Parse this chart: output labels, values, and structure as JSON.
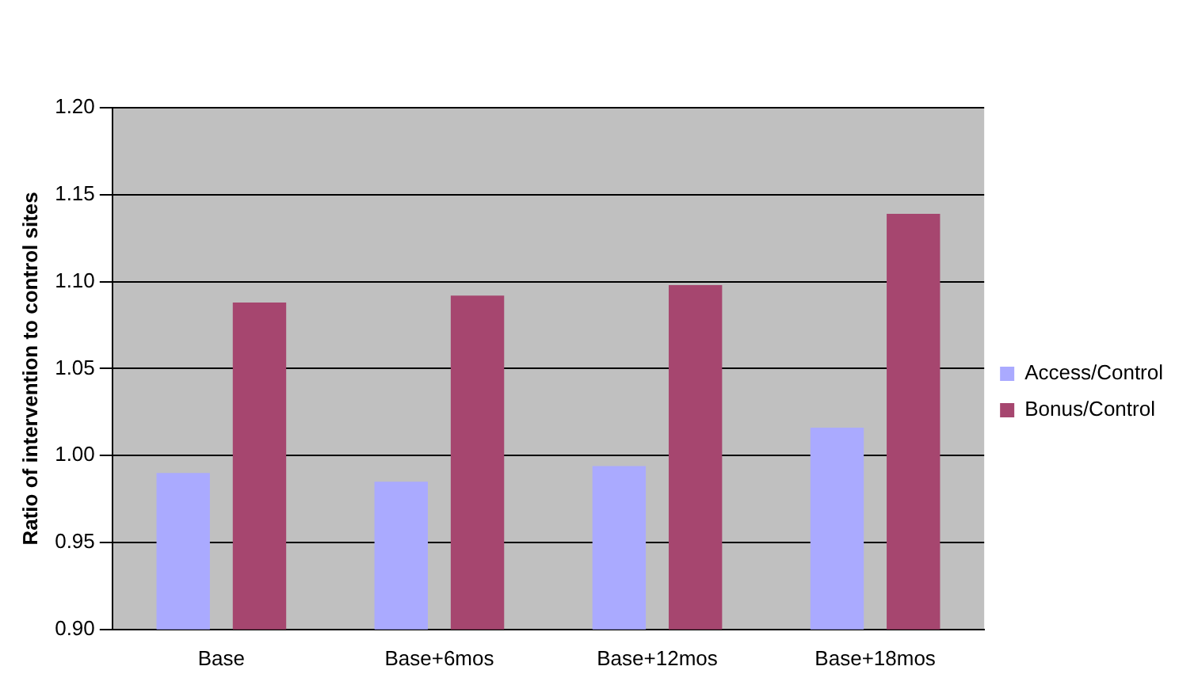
{
  "chart_data": {
    "type": "bar",
    "ylabel": "Ratio of intervention to control sites",
    "categories": [
      "Base",
      "Base+6mos",
      "Base+12mos",
      "Base+18mos"
    ],
    "series": [
      {
        "name": "Access/Control",
        "color": "#aaaaff",
        "values": [
          0.99,
          0.985,
          0.994,
          1.016
        ]
      },
      {
        "name": "Bonus/Control",
        "color": "#a6466f",
        "values": [
          1.088,
          1.092,
          1.098,
          1.139
        ]
      }
    ],
    "ylim": [
      0.9,
      1.2
    ],
    "yticks": [
      {
        "value": 0.9,
        "label": "0.90"
      },
      0.95,
      {
        "value": 1.0,
        "label": "1.00"
      },
      1.05,
      {
        "value": 1.1,
        "label": "1.10"
      },
      1.15,
      {
        "value": 1.2,
        "label": "1.20"
      }
    ],
    "grid": "y",
    "legend": "right"
  }
}
